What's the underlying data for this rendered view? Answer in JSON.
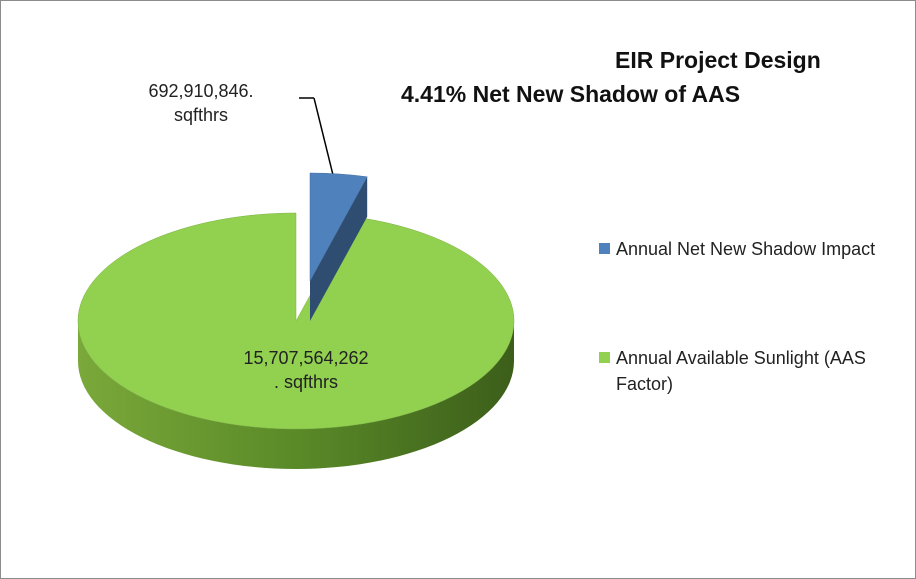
{
  "chart_data": {
    "type": "pie3d",
    "title": "EIR Project Design",
    "subtitle": "4.41% Net New  Shadow of AAS",
    "categories": [
      "Annual Net New Shadow Impact",
      "Annual Available Sunlight (AAS Factor)"
    ],
    "values": [
      692910846,
      15707564262
    ],
    "value_labels": [
      "692,910,846. sqfthrs",
      "15,707,564,262. sqfthrs"
    ],
    "colors": [
      "#4f81bd",
      "#92d050"
    ],
    "legend": "right"
  }
}
